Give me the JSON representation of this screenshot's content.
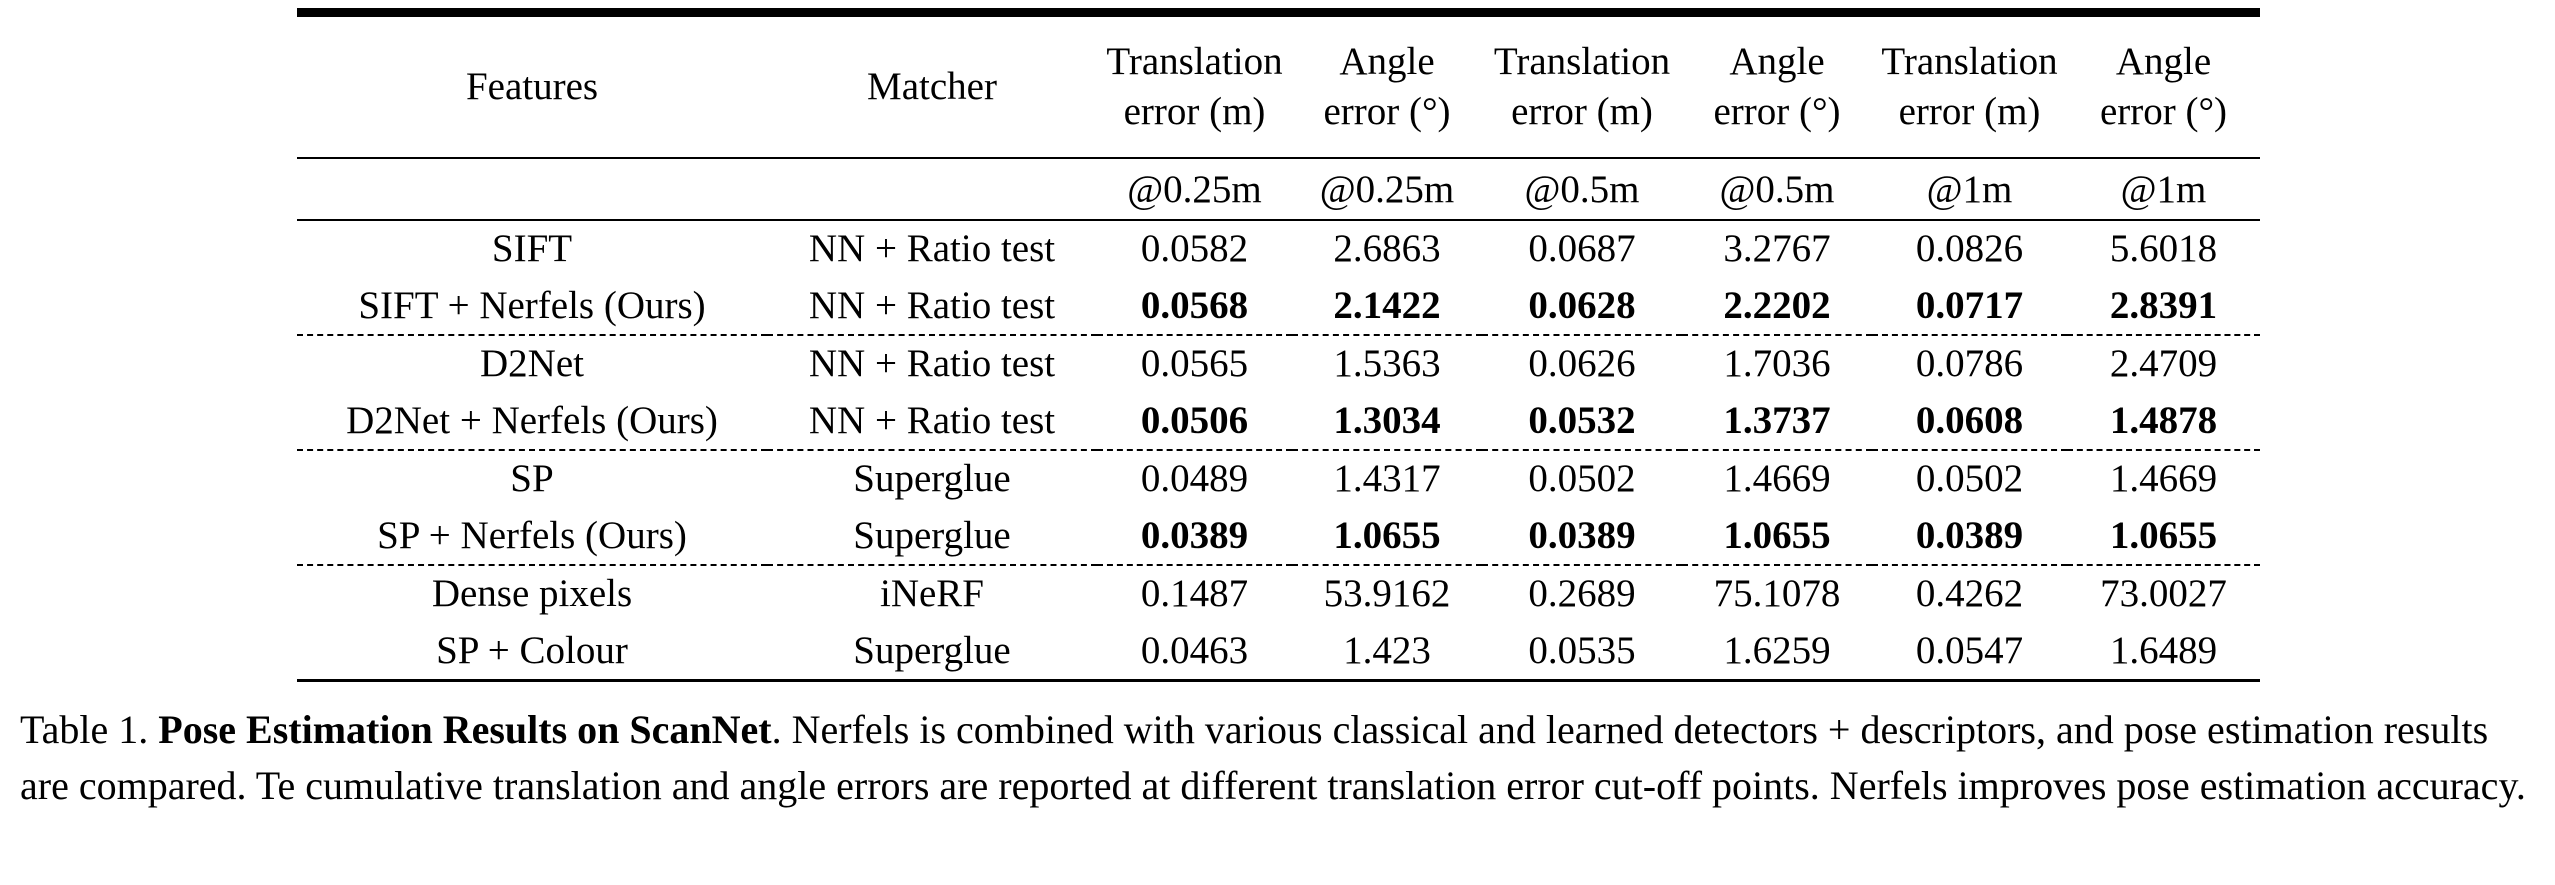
{
  "table": {
    "header": {
      "features": "Features",
      "matcher": "Matcher",
      "cols": [
        {
          "l1": "Translation",
          "l2": "error (m)"
        },
        {
          "l1": "Angle",
          "l2": "error (°)"
        },
        {
          "l1": "Translation",
          "l2": "error (m)"
        },
        {
          "l1": "Angle",
          "l2": "error (°)"
        },
        {
          "l1": "Translation",
          "l2": "error (m)"
        },
        {
          "l1": "Angle",
          "l2": "error (°)"
        }
      ],
      "cutoffs": [
        "@0.25m",
        "@0.25m",
        "@0.5m",
        "@0.5m",
        "@1m",
        "@1m"
      ]
    },
    "rows": [
      {
        "features": "SIFT",
        "matcher": "NN + Ratio test",
        "values": [
          "0.0582",
          "2.6863",
          "0.0687",
          "3.2767",
          "0.0826",
          "5.6018"
        ]
      },
      {
        "features": "SIFT + Nerfels (Ours)",
        "matcher": "NN + Ratio test",
        "values": [
          "0.0568",
          "2.1422",
          "0.0628",
          "2.2202",
          "0.0717",
          "2.8391"
        ]
      },
      {
        "features": "D2Net",
        "matcher": "NN + Ratio test",
        "values": [
          "0.0565",
          "1.5363",
          "0.0626",
          "1.7036",
          "0.0786",
          "2.4709"
        ]
      },
      {
        "features": "D2Net + Nerfels (Ours)",
        "matcher": "NN + Ratio test",
        "values": [
          "0.0506",
          "1.3034",
          "0.0532",
          "1.3737",
          "0.0608",
          "1.4878"
        ]
      },
      {
        "features": "SP",
        "matcher": "Superglue",
        "values": [
          "0.0489",
          "1.4317",
          "0.0502",
          "1.4669",
          "0.0502",
          "1.4669"
        ]
      },
      {
        "features": "SP + Nerfels (Ours)",
        "matcher": "Superglue",
        "values": [
          "0.0389",
          "1.0655",
          "0.0389",
          "1.0655",
          "0.0389",
          "1.0655"
        ]
      },
      {
        "features": "Dense pixels",
        "matcher": "iNeRF",
        "values": [
          "0.1487",
          "53.9162",
          "0.2689",
          "75.1078",
          "0.4262",
          "73.0027"
        ]
      },
      {
        "features": "SP + Colour",
        "matcher": "Superglue",
        "values": [
          "0.0463",
          "1.423",
          "0.0535",
          "1.6259",
          "0.0547",
          "1.6489"
        ]
      }
    ]
  },
  "caption": {
    "label": "Table 1.",
    "title": "Pose Estimation Results on ScanNet",
    "text": ". Nerfels is combined with various classical and learned detectors + descriptors, and pose estimation results are compared. Te cumulative translation and angle errors are reported at different translation error cut-off points. Nerfels improves pose estimation accuracy."
  }
}
